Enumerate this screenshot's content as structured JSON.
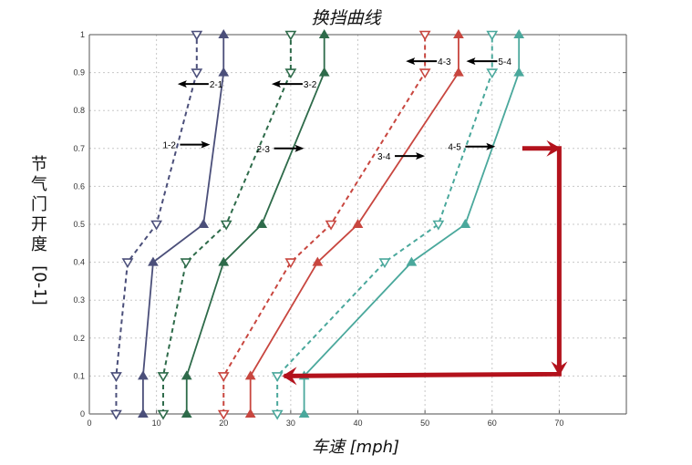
{
  "chart_data": {
    "type": "line",
    "title": "换挡曲线",
    "xlabel": "车速 [mph]",
    "ylabel": "节气门开度 [0-1]",
    "xlim": [
      0,
      80
    ],
    "ylim": [
      0,
      1
    ],
    "xticks": [
      0,
      10,
      20,
      30,
      40,
      50,
      60,
      70
    ],
    "yticks": [
      0,
      0.1,
      0.2,
      0.3,
      0.4,
      0.5,
      0.6,
      0.7,
      0.8,
      0.9,
      1
    ],
    "grid": true,
    "y": [
      0,
      0.1,
      0.4,
      0.5,
      0.9,
      1.0
    ],
    "series": [
      {
        "name": "1-2",
        "style": "solid",
        "marker": "triangle-up",
        "color": "#4b4f7a",
        "x": [
          8,
          8,
          9.5,
          17,
          20,
          20
        ]
      },
      {
        "name": "2-1",
        "style": "dashed",
        "marker": "triangle-down",
        "color": "#4b4f7a",
        "x": [
          4,
          4,
          5.7,
          10,
          16,
          16
        ]
      },
      {
        "name": "2-3",
        "style": "solid",
        "marker": "triangle-up",
        "color": "#2e6b4a",
        "x": [
          14.5,
          14.5,
          20,
          25.7,
          35,
          35
        ]
      },
      {
        "name": "3-2",
        "style": "dashed",
        "marker": "triangle-down",
        "color": "#2e6b4a",
        "x": [
          11,
          11,
          14.4,
          20.4,
          30,
          30
        ]
      },
      {
        "name": "3-4",
        "style": "solid",
        "marker": "triangle-up",
        "color": "#c8463f",
        "x": [
          24,
          24,
          34,
          40,
          55,
          55
        ]
      },
      {
        "name": "4-3",
        "style": "dashed",
        "marker": "triangle-down",
        "color": "#c8463f",
        "x": [
          20,
          20,
          30,
          36,
          50,
          50
        ]
      },
      {
        "name": "4-5",
        "style": "solid",
        "marker": "triangle-up",
        "color": "#4aa89c",
        "x": [
          32,
          32,
          48,
          56,
          64,
          64
        ]
      },
      {
        "name": "5-4",
        "style": "dashed",
        "marker": "triangle-down",
        "color": "#4aa89c",
        "x": [
          28,
          28,
          44,
          52,
          60,
          60
        ]
      }
    ],
    "annotations": [
      {
        "text": "2-1",
        "x": 17.5,
        "y": 0.87,
        "arrow": "left"
      },
      {
        "text": "3-2",
        "x": 31.5,
        "y": 0.87,
        "arrow": "left"
      },
      {
        "text": "4-3",
        "x": 51.5,
        "y": 0.93,
        "arrow": "left"
      },
      {
        "text": "5-4",
        "x": 60.5,
        "y": 0.93,
        "arrow": "left"
      },
      {
        "text": "1-2",
        "x": 15,
        "y": 0.71,
        "arrow": "right"
      },
      {
        "text": "2-3",
        "x": 29,
        "y": 0.7,
        "arrow": "right"
      },
      {
        "text": "3-4",
        "x": 47,
        "y": 0.68,
        "arrow": "right"
      },
      {
        "text": "4-5",
        "x": 57.5,
        "y": 0.705,
        "arrow": "right"
      }
    ],
    "highlight_path": {
      "color": "#b3121c",
      "points": [
        [
          64.5,
          0.7
        ],
        [
          70,
          0.7
        ],
        [
          70,
          0.105
        ],
        [
          29,
          0.1
        ]
      ]
    }
  },
  "labels": {
    "title": "换挡曲线",
    "xlabel": "车速 [mph]",
    "ylabel_chars": [
      "节",
      "气",
      "门",
      "开",
      "度"
    ],
    "ylabel_unit": "[0-1]"
  }
}
